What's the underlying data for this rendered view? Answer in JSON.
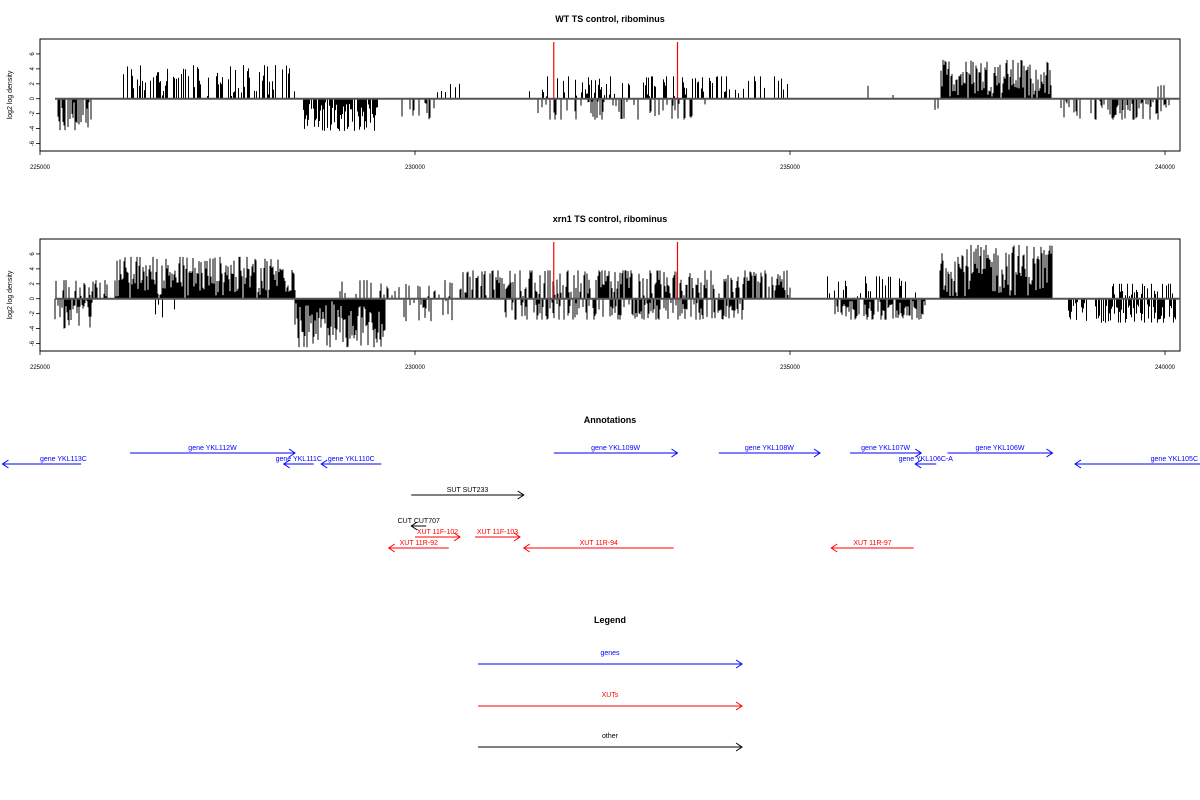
{
  "chart_data": [
    {
      "type": "bar",
      "title": "WT TS control, ribominus",
      "ylabel": "log2 log density",
      "xlim": [
        225000,
        240200
      ],
      "ylim": [
        -7,
        8
      ],
      "x_ticks": [
        225000,
        230000,
        235000,
        240000
      ],
      "y_ticks": [
        -6,
        -4,
        -2,
        0,
        2,
        4,
        6
      ],
      "markers": [
        {
          "x": 231850,
          "color": "#ff0000"
        },
        {
          "x": 233500,
          "color": "#ff0000"
        }
      ],
      "series": [
        {
          "strand": "plus",
          "regions": [
            {
              "x": [
                226100,
                228400
              ],
              "max": 4.5,
              "density": 0.45
            },
            {
              "x": [
                230100,
                230600
              ],
              "max": 2.0,
              "density": 0.15
            },
            {
              "x": [
                231500,
                235000
              ],
              "max": 3.0,
              "density": 0.35
            },
            {
              "x": [
                236000,
                236500
              ],
              "max": 2.0,
              "density": 0.1
            },
            {
              "x": [
                237000,
                238500
              ],
              "max": 5.2,
              "density": 0.9
            },
            {
              "x": [
                239800,
                240000
              ],
              "max": 2.5,
              "density": 0.2
            }
          ]
        },
        {
          "strand": "minus",
          "regions": [
            {
              "x": [
                225200,
                225700
              ],
              "max": 4.2,
              "density": 0.6
            },
            {
              "x": [
                228500,
                229500
              ],
              "max": 4.3,
              "density": 0.8
            },
            {
              "x": [
                229800,
                230300
              ],
              "max": 3.5,
              "density": 0.15
            },
            {
              "x": [
                231600,
                234000
              ],
              "max": 2.8,
              "density": 0.25
            },
            {
              "x": [
                236800,
                237000
              ],
              "max": 1.5,
              "density": 0.2
            },
            {
              "x": [
                238600,
                240100
              ],
              "max": 2.8,
              "density": 0.4
            }
          ]
        }
      ]
    },
    {
      "type": "bar",
      "title": "xrn1 TS control, ribominus",
      "ylabel": "log2 log density",
      "xlim": [
        225000,
        240200
      ],
      "ylim": [
        -7,
        8
      ],
      "x_ticks": [
        225000,
        230000,
        235000,
        240000
      ],
      "y_ticks": [
        -6,
        -4,
        -2,
        0,
        2,
        4,
        6
      ],
      "markers": [
        {
          "x": 231850,
          "color": "#ff0000"
        },
        {
          "x": 233500,
          "color": "#ff0000"
        }
      ],
      "series": [
        {
          "strand": "plus",
          "regions": [
            {
              "x": [
                225200,
                225900
              ],
              "max": 2.5,
              "density": 0.4
            },
            {
              "x": [
                226000,
                228400
              ],
              "max": 5.6,
              "density": 0.95
            },
            {
              "x": [
                229000,
                230500
              ],
              "max": 2.5,
              "density": 0.3
            },
            {
              "x": [
                230600,
                235000
              ],
              "max": 3.8,
              "density": 0.65
            },
            {
              "x": [
                235500,
                236800
              ],
              "max": 3.0,
              "density": 0.3
            },
            {
              "x": [
                237000,
                238500
              ],
              "max": 7.2,
              "density": 1.0
            },
            {
              "x": [
                239300,
                240100
              ],
              "max": 2.0,
              "density": 0.3
            }
          ]
        },
        {
          "strand": "minus",
          "regions": [
            {
              "x": [
                225200,
                225700
              ],
              "max": 4.0,
              "density": 0.8
            },
            {
              "x": [
                226500,
                226800
              ],
              "max": 2.5,
              "density": 0.3
            },
            {
              "x": [
                228400,
                229600
              ],
              "max": 6.5,
              "density": 1.0
            },
            {
              "x": [
                229800,
                230500
              ],
              "max": 3.0,
              "density": 0.35
            },
            {
              "x": [
                231200,
                234400
              ],
              "max": 2.8,
              "density": 0.5
            },
            {
              "x": [
                235600,
                236800
              ],
              "max": 2.8,
              "density": 0.8
            },
            {
              "x": [
                238700,
                240200
              ],
              "max": 3.2,
              "density": 0.6
            }
          ]
        }
      ]
    }
  ],
  "annotations": {
    "title": "Annotations",
    "items": [
      {
        "label": "gene YKL113C",
        "start": 224500,
        "end": 225550,
        "row": 1,
        "dir": "left",
        "color": "#0000ff"
      },
      {
        "label": "gene YKL112W",
        "start": 226200,
        "end": 228400,
        "row": 0,
        "dir": "right",
        "color": "#0000ff"
      },
      {
        "label": "gene YKL111C",
        "start": 228250,
        "end": 228650,
        "row": 1,
        "dir": "left",
        "color": "#0000ff"
      },
      {
        "label": "gene YKL110C",
        "start": 228750,
        "end": 229550,
        "row": 1,
        "dir": "left",
        "color": "#0000ff"
      },
      {
        "label": "gene YKL109W",
        "start": 231850,
        "end": 233500,
        "row": 0,
        "dir": "right",
        "color": "#0000ff"
      },
      {
        "label": "gene YKL108W",
        "start": 234050,
        "end": 235400,
        "row": 0,
        "dir": "right",
        "color": "#0000ff"
      },
      {
        "label": "gene YKL107W",
        "start": 235800,
        "end": 236750,
        "row": 0,
        "dir": "right",
        "color": "#0000ff"
      },
      {
        "label": "gene YKL106C-A",
        "start": 236670,
        "end": 236950,
        "row": 1,
        "dir": "left",
        "color": "#0000ff"
      },
      {
        "label": "gene YKL106W",
        "start": 237100,
        "end": 238500,
        "row": 0,
        "dir": "right",
        "color": "#0000ff"
      },
      {
        "label": "gene YKL105C",
        "start": 238800,
        "end": 241000,
        "row": 1,
        "dir": "left",
        "color": "#0000ff"
      },
      {
        "label": "SUT SUT233",
        "start": 229950,
        "end": 231450,
        "row": 3,
        "dir": "right",
        "color": "#000000"
      },
      {
        "label": "CUT CUT707",
        "start": 229950,
        "end": 230150,
        "row": 5,
        "dir": "left",
        "color": "#000000"
      },
      {
        "label": "XUT 11F-102",
        "start": 230000,
        "end": 230600,
        "row": 6,
        "dir": "right",
        "color": "#ff0000"
      },
      {
        "label": "XUT 11F-103",
        "start": 230800,
        "end": 231400,
        "row": 6,
        "dir": "right",
        "color": "#ff0000"
      },
      {
        "label": "XUT 11R-92",
        "start": 229650,
        "end": 230450,
        "row": 7,
        "dir": "left",
        "color": "#ff0000"
      },
      {
        "label": "XUT 11R-94",
        "start": 231450,
        "end": 233450,
        "row": 7,
        "dir": "left",
        "color": "#ff0000"
      },
      {
        "label": "XUT 11R-97",
        "start": 235550,
        "end": 236650,
        "row": 7,
        "dir": "left",
        "color": "#ff0000"
      }
    ]
  },
  "legend": {
    "title": "Legend",
    "items": [
      {
        "label": "genes",
        "color": "#0000ff"
      },
      {
        "label": "XUTs",
        "color": "#ff0000"
      },
      {
        "label": "other",
        "color": "#000000"
      }
    ]
  }
}
